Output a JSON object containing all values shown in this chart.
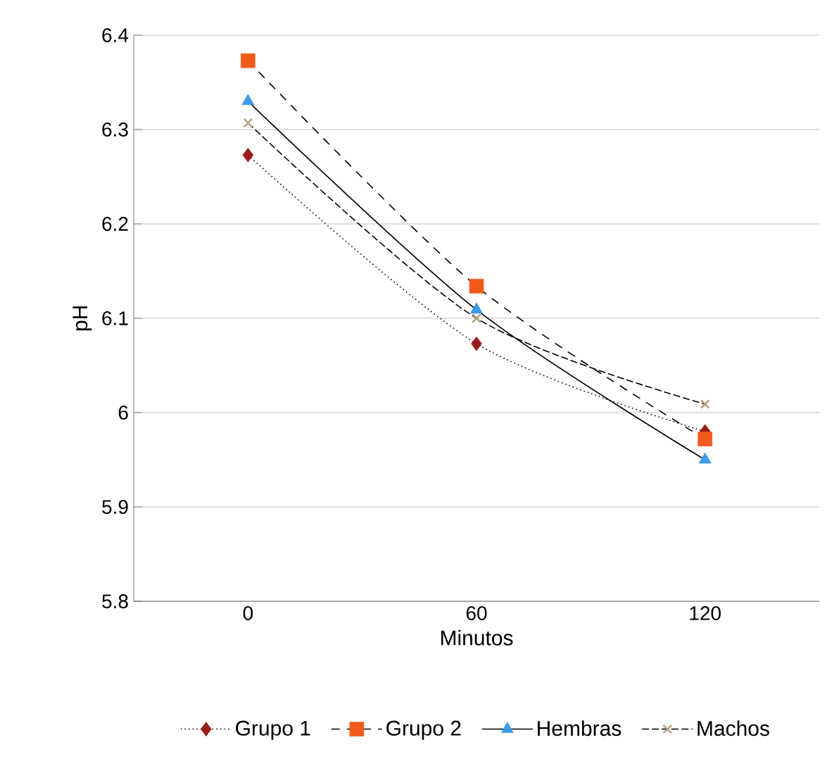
{
  "chart_data": {
    "type": "line",
    "xlabel": "Minutos",
    "ylabel": "pH",
    "categories": [
      "0",
      "60",
      "120"
    ],
    "series": [
      {
        "name": "Grupo 1",
        "color": "#9b1b1b",
        "marker": "diamond",
        "line_style": "dotted",
        "values": [
          6.273,
          6.073,
          5.98
        ]
      },
      {
        "name": "Grupo 2",
        "color": "#f05a1a",
        "marker": "square",
        "line_style": "dashed",
        "values": [
          6.373,
          6.134,
          5.972
        ]
      },
      {
        "name": "Hembras",
        "color": "#3c9be6",
        "marker": "triangle",
        "line_style": "solid",
        "values": [
          6.33,
          6.109,
          5.95
        ]
      },
      {
        "name": "Machos",
        "color": "#b49a7a",
        "marker": "cross",
        "line_style": "loosely dashed",
        "values": [
          6.307,
          6.1,
          6.009
        ]
      }
    ],
    "ylim": [
      5.8,
      6.4
    ],
    "yticks": [
      5.8,
      5.9,
      6,
      6.1,
      6.2,
      6.3,
      6.4
    ],
    "grid": "y",
    "legend": "bottom"
  }
}
